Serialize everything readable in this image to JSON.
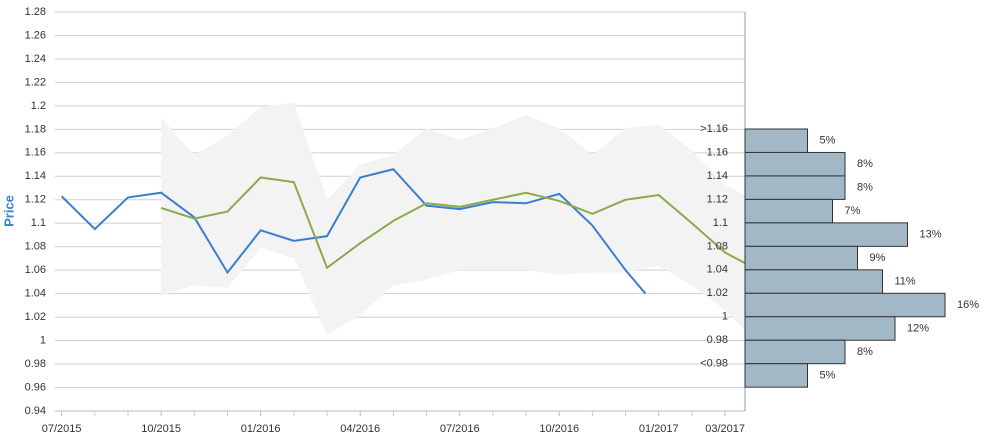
{
  "chart_data": [
    {
      "type": "line",
      "ylabel": "Price",
      "xlim": [
        -0.2,
        20.6
      ],
      "ylim": [
        0.94,
        1.28
      ],
      "yticks": [
        0.94,
        0.96,
        0.98,
        1,
        1.02,
        1.04,
        1.06,
        1.08,
        1.1,
        1.12,
        1.14,
        1.16,
        1.18,
        1.2,
        1.22,
        1.24,
        1.26,
        1.28
      ],
      "xticks": [
        {
          "value": 0,
          "label": "07/2015"
        },
        {
          "value": 3,
          "label": "10/2015"
        },
        {
          "value": 6,
          "label": "01/2016"
        },
        {
          "value": 9,
          "label": "04/2016"
        },
        {
          "value": 12,
          "label": "07/2016"
        },
        {
          "value": 15,
          "label": "10/2016"
        },
        {
          "value": 18,
          "label": "01/2017"
        },
        {
          "value": 20,
          "label": "03/2017"
        }
      ],
      "xminorticks": [
        1,
        2,
        4,
        5,
        7,
        8,
        10,
        11,
        13,
        14,
        16,
        17,
        19
      ],
      "grid": true,
      "band": {
        "color": "#f3f3f3",
        "x": [
          3,
          4,
          5,
          6,
          7,
          8,
          9,
          10,
          11,
          12,
          13,
          14,
          15,
          16,
          17,
          18,
          19,
          20,
          20.6
        ],
        "upper": [
          1.19,
          1.158,
          1.175,
          1.199,
          1.203,
          1.12,
          1.15,
          1.158,
          1.181,
          1.171,
          1.181,
          1.192,
          1.181,
          1.158,
          1.181,
          1.184,
          1.162,
          1.133,
          1.124
        ],
        "lower": [
          1.038,
          1.047,
          1.045,
          1.079,
          1.07,
          1.005,
          1.022,
          1.047,
          1.052,
          1.06,
          1.06,
          1.06,
          1.056,
          1.058,
          1.058,
          1.064,
          1.047,
          1.026,
          1.009
        ]
      },
      "series": [
        {
          "color": "#3a7fcf",
          "x": [
            0,
            1,
            2,
            3,
            4,
            5,
            6,
            7,
            8,
            9,
            10,
            11,
            12,
            13,
            14,
            15,
            16,
            17,
            17.6
          ],
          "values": [
            1.123,
            1.095,
            1.122,
            1.126,
            1.105,
            1.058,
            1.094,
            1.085,
            1.089,
            1.139,
            1.146,
            1.115,
            1.112,
            1.118,
            1.117,
            1.125,
            1.098,
            1.06,
            1.04
          ]
        },
        {
          "color": "#8aab4a",
          "x": [
            3,
            4,
            5,
            6,
            7,
            8,
            9,
            10,
            11,
            12,
            13,
            14,
            15,
            16,
            17,
            18,
            19,
            20,
            20.6
          ],
          "values": [
            1.113,
            1.104,
            1.11,
            1.139,
            1.135,
            1.062,
            1.083,
            1.102,
            1.117,
            1.114,
            1.12,
            1.126,
            1.119,
            1.108,
            1.12,
            1.124,
            1.1,
            1.075,
            1.066
          ]
        }
      ]
    },
    {
      "type": "hbar",
      "color": "#a2b8c6",
      "categories": [
        ">1.16",
        "1.16",
        "1.14",
        "1.12",
        "1.1",
        "1.08",
        "1.04",
        "1.02",
        "1",
        "0.98",
        "<0.98"
      ],
      "values": [
        5,
        8,
        8,
        7,
        13,
        9,
        11,
        16,
        12,
        8,
        5
      ],
      "value_labels": [
        "5%",
        "8%",
        "8%",
        "7%",
        "13%",
        "9%",
        "11%",
        "16%",
        "12%",
        "8%",
        "5%"
      ]
    }
  ]
}
